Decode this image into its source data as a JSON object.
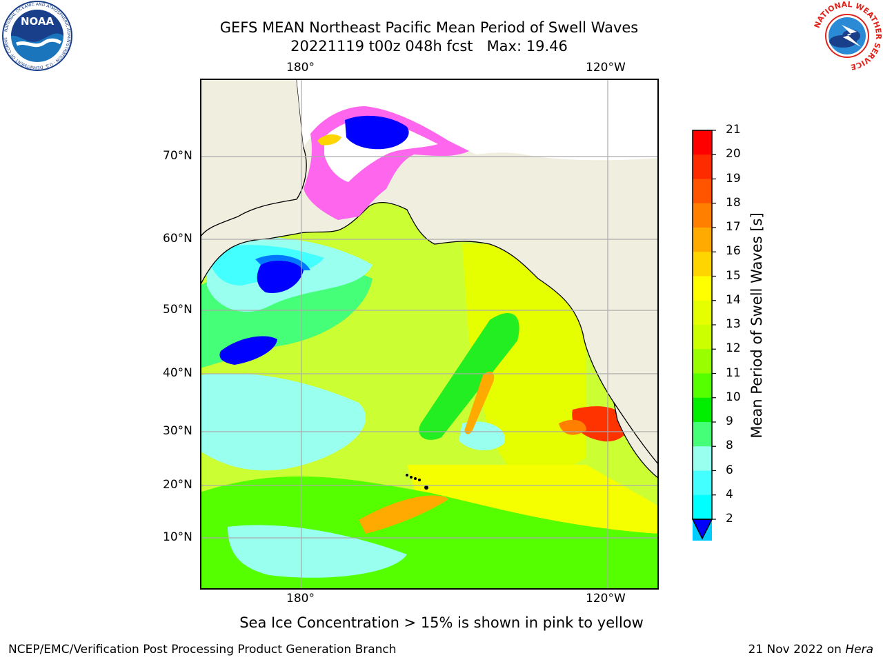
{
  "title_line1": "GEFS MEAN Northeast Pacific Mean Period of Swell Waves",
  "title_line2": "20221119 t00z 048h fcst   Max: 19.46",
  "top_lon_labels": [
    "180°",
    "120°W"
  ],
  "bottom_lon_labels": [
    "180°",
    "120°W"
  ],
  "lat_labels": [
    "70°N",
    "60°N",
    "50°N",
    "40°N",
    "30°N",
    "20°N",
    "10°N"
  ],
  "colorbar": {
    "label": "Mean Period of Swell Waves [s]",
    "ticks": [
      "21",
      "20",
      "19",
      "18",
      "17",
      "16",
      "15",
      "14",
      "13",
      "12",
      "11",
      "10",
      "9",
      "8",
      "6",
      "4",
      "2"
    ],
    "colors": [
      "#ff0000",
      "#ff2b00",
      "#ff5500",
      "#ff8000",
      "#ffaa00",
      "#ffd500",
      "#ffff00",
      "#e6ff00",
      "#ccff00",
      "#99ff00",
      "#55ff00",
      "#00ee00",
      "#44ff77",
      "#99ffee",
      "#44ffff",
      "#00ffff",
      "#00ccff",
      "#0077ff"
    ],
    "extend_color": "#0000ff"
  },
  "caption": "Sea Ice Concentration > 15% is shown in pink to yellow",
  "footer_left": "NCEP/EMC/Verification Post Processing Product Generation Branch",
  "footer_right_text": "21 Nov 2022 on ",
  "footer_right_italic": "Hera",
  "logos": {
    "noaa_text": "NOAA",
    "noaa_ring": "NATIONAL OCEANIC AND ATMOSPHERIC ADMINISTRATION · U.S. DEPARTMENT OF COMMERCE",
    "nws_ring": "NATIONAL WEATHER SERVICE"
  },
  "map_colors": {
    "land": "#f0eedf",
    "ocean_base": "#ccff33",
    "grid": "#aaaaaa"
  }
}
